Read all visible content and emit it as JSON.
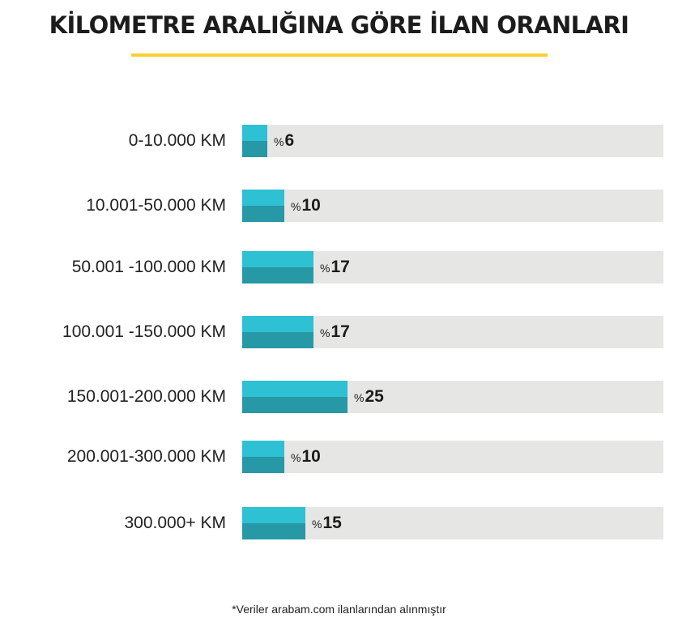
{
  "title": "KİLOMETRE ARALIĞINA GÖRE İLAN ORANLARI",
  "footnote": "*Veriler arabam.com ilanlarından alınmıştır",
  "colors": {
    "accent_rule": "#f7d131",
    "bar_top": "#2ec0d3",
    "bar_bottom": "#2798a6",
    "track": "#e6e6e4"
  },
  "chart_data": {
    "type": "bar",
    "orientation": "horizontal",
    "title": "KİLOMETRE ARALIĞINA GÖRE İLAN ORANLARI",
    "value_prefix": "%",
    "categories": [
      "0-10.000 KM",
      "10.001-50.000 KM",
      "50.001 -100.000 KM",
      "100.001 -150.000 KM",
      "150.001-200.000 KM",
      "200.001-300.000 KM",
      "300.000+ KM"
    ],
    "values": [
      6,
      10,
      17,
      17,
      25,
      10,
      15
    ],
    "xlim": [
      0,
      100
    ],
    "grid": false,
    "legend": "none"
  }
}
